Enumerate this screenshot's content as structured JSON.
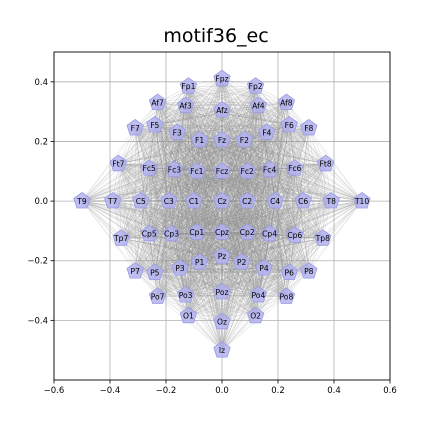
{
  "title": "motif36_ec",
  "chart_data": {
    "type": "scatter",
    "xlim": [
      -0.6,
      0.6
    ],
    "ylim": [
      -0.6,
      0.5
    ],
    "xticks": [
      "−0.6",
      "−0.4",
      "−0.2",
      "0.0",
      "0.2",
      "0.4",
      "0.6"
    ],
    "yticks": [
      "0.4",
      "0.2",
      "0.0",
      "−0.2",
      "−0.4"
    ],
    "grid": true,
    "colors": {
      "node_fill": "#b3b3f0",
      "node_stroke": "#9a9ae6",
      "edge": "#8c8c8c",
      "grid": "#b0b0b0"
    },
    "nodes": [
      {
        "label": "Fpz",
        "x": 0.0,
        "y": 0.41
      },
      {
        "label": "Fp1",
        "x": -0.12,
        "y": 0.385
      },
      {
        "label": "Fp2",
        "x": 0.12,
        "y": 0.385
      },
      {
        "label": "Af7",
        "x": -0.23,
        "y": 0.33
      },
      {
        "label": "Af3",
        "x": -0.13,
        "y": 0.32
      },
      {
        "label": "Afz",
        "x": 0.0,
        "y": 0.305
      },
      {
        "label": "Af4",
        "x": 0.13,
        "y": 0.32
      },
      {
        "label": "Af8",
        "x": 0.23,
        "y": 0.33
      },
      {
        "label": "F7",
        "x": -0.31,
        "y": 0.245
      },
      {
        "label": "F5",
        "x": -0.24,
        "y": 0.255
      },
      {
        "label": "F3",
        "x": -0.16,
        "y": 0.23
      },
      {
        "label": "F1",
        "x": -0.08,
        "y": 0.205
      },
      {
        "label": "Fz",
        "x": 0.0,
        "y": 0.205
      },
      {
        "label": "F2",
        "x": 0.08,
        "y": 0.205
      },
      {
        "label": "F4",
        "x": 0.16,
        "y": 0.23
      },
      {
        "label": "F6",
        "x": 0.24,
        "y": 0.255
      },
      {
        "label": "F8",
        "x": 0.31,
        "y": 0.245
      },
      {
        "label": "Ft7",
        "x": -0.37,
        "y": 0.125
      },
      {
        "label": "Fc5",
        "x": -0.26,
        "y": 0.11
      },
      {
        "label": "Fc3",
        "x": -0.17,
        "y": 0.105
      },
      {
        "label": "Fc1",
        "x": -0.09,
        "y": 0.1
      },
      {
        "label": "Fcz",
        "x": 0.0,
        "y": 0.1
      },
      {
        "label": "Fc2",
        "x": 0.09,
        "y": 0.1
      },
      {
        "label": "Fc4",
        "x": 0.17,
        "y": 0.105
      },
      {
        "label": "Fc6",
        "x": 0.26,
        "y": 0.11
      },
      {
        "label": "Ft8",
        "x": 0.37,
        "y": 0.125
      },
      {
        "label": "T9",
        "x": -0.5,
        "y": 0.0
      },
      {
        "label": "T7",
        "x": -0.39,
        "y": 0.0
      },
      {
        "label": "C5",
        "x": -0.29,
        "y": 0.0
      },
      {
        "label": "C3",
        "x": -0.19,
        "y": 0.0
      },
      {
        "label": "C1",
        "x": -0.1,
        "y": 0.0
      },
      {
        "label": "Cz",
        "x": 0.0,
        "y": 0.0
      },
      {
        "label": "C2",
        "x": 0.09,
        "y": 0.0
      },
      {
        "label": "C4",
        "x": 0.19,
        "y": 0.0
      },
      {
        "label": "C6",
        "x": 0.29,
        "y": 0.0
      },
      {
        "label": "T8",
        "x": 0.39,
        "y": 0.0
      },
      {
        "label": "T10",
        "x": 0.5,
        "y": 0.0
      },
      {
        "label": "Tp7",
        "x": -0.36,
        "y": -0.125
      },
      {
        "label": "Cp5",
        "x": -0.26,
        "y": -0.11
      },
      {
        "label": "Cp3",
        "x": -0.18,
        "y": -0.11
      },
      {
        "label": "Cp1",
        "x": -0.09,
        "y": -0.105
      },
      {
        "label": "Cpz",
        "x": 0.0,
        "y": -0.105
      },
      {
        "label": "Cp2",
        "x": 0.09,
        "y": -0.105
      },
      {
        "label": "Cp4",
        "x": 0.17,
        "y": -0.11
      },
      {
        "label": "Cp6",
        "x": 0.26,
        "y": -0.115
      },
      {
        "label": "Tp8",
        "x": 0.36,
        "y": -0.125
      },
      {
        "label": "P7",
        "x": -0.31,
        "y": -0.235
      },
      {
        "label": "P5",
        "x": -0.24,
        "y": -0.24
      },
      {
        "label": "P3",
        "x": -0.15,
        "y": -0.225
      },
      {
        "label": "P1",
        "x": -0.08,
        "y": -0.205
      },
      {
        "label": "Pz",
        "x": 0.0,
        "y": -0.185
      },
      {
        "label": "P2",
        "x": 0.07,
        "y": -0.205
      },
      {
        "label": "P4",
        "x": 0.15,
        "y": -0.225
      },
      {
        "label": "P6",
        "x": 0.24,
        "y": -0.24
      },
      {
        "label": "P8",
        "x": 0.31,
        "y": -0.235
      },
      {
        "label": "Po7",
        "x": -0.23,
        "y": -0.32
      },
      {
        "label": "Po3",
        "x": -0.13,
        "y": -0.315
      },
      {
        "label": "Poz",
        "x": 0.0,
        "y": -0.305
      },
      {
        "label": "Po4",
        "x": 0.13,
        "y": -0.315
      },
      {
        "label": "Po8",
        "x": 0.23,
        "y": -0.32
      },
      {
        "label": "O1",
        "x": -0.12,
        "y": -0.385
      },
      {
        "label": "Oz",
        "x": 0.0,
        "y": -0.405
      },
      {
        "label": "O2",
        "x": 0.12,
        "y": -0.385
      },
      {
        "label": "Iz",
        "x": 0.0,
        "y": -0.5
      }
    ]
  }
}
